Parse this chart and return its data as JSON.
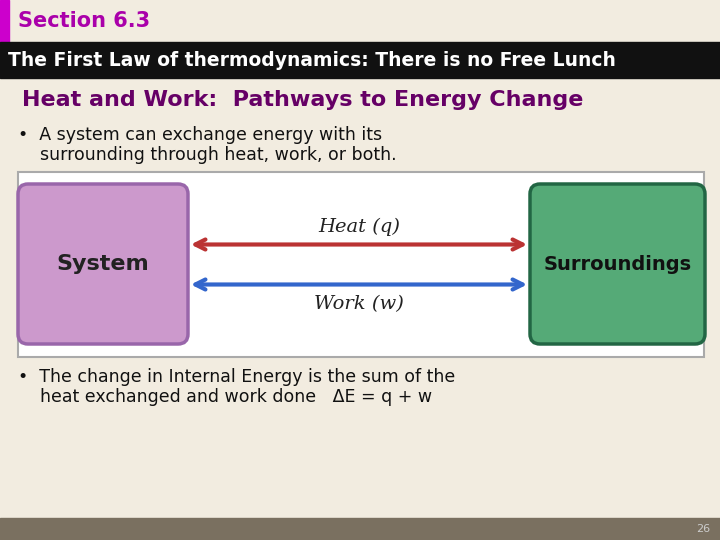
{
  "section_text": "Section 6.3",
  "section_color": "#aa00aa",
  "section_bar_color": "#cc00cc",
  "header_text": "The First Law of thermodynamics: There is no Free Lunch",
  "header_bg": "#111111",
  "header_text_color": "#ffffff",
  "subtitle": "Heat and Work:  Pathways to Energy Change",
  "subtitle_color": "#660066",
  "bullet1_line1": "•  A system can exchange energy with its",
  "bullet1_line2": "    surrounding through heat, work, or both.",
  "bullet2_line1": "•  The change in Internal Energy is the sum of the",
  "bullet2_line2": "    heat exchanged and work done   ΔE = q + w",
  "bg_color": "#f2ece0",
  "diagram_bg": "#ffffff",
  "diagram_border": "#aaaaaa",
  "system_box_color": "#cc99cc",
  "system_box_edge": "#9966aa",
  "surroundings_box_color": "#55aa77",
  "surroundings_box_edge": "#226644",
  "heat_arrow_color": "#bb3333",
  "work_arrow_color": "#3366cc",
  "heat_label": "Heat (q)",
  "work_label": "Work (w)",
  "system_label": "System",
  "surroundings_label": "Surroundings",
  "footer_bg": "#7a7060",
  "footer_text": "26"
}
